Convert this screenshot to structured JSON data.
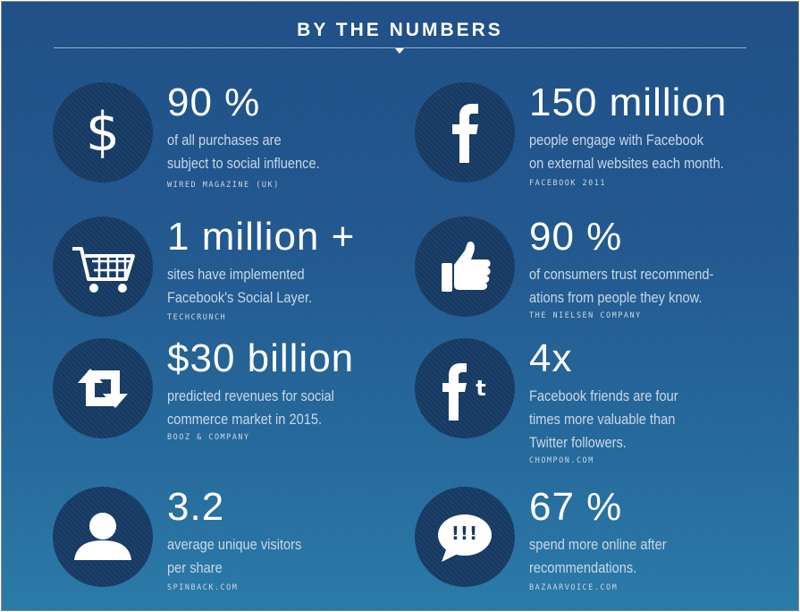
{
  "header": {
    "title": "BY THE NUMBERS"
  },
  "stats": [
    {
      "icon": "dollar-icon",
      "figure": "90 %",
      "line1": "of all purchases are",
      "line2": "subject to social influence.",
      "source": "WIRED MAGAZINE (UK)"
    },
    {
      "icon": "facebook-icon",
      "figure": "150 million",
      "line1": "people engage with Facebook",
      "line2": "on external websites each month.",
      "source": "FACEBOOK 2011"
    },
    {
      "icon": "shopping-cart-icon",
      "figure": "1 million +",
      "line1": "sites have implemented",
      "line2": "Facebook's Social Layer.",
      "source": "TECHCRUNCH"
    },
    {
      "icon": "thumbs-up-icon",
      "figure": "90 %",
      "line1": "of consumers trust recommend-",
      "line2": "ations from people they know.",
      "source": "THE NIELSEN COMPANY"
    },
    {
      "icon": "retweet-icon",
      "figure": "$30 billion",
      "line1": "predicted revenues for social",
      "line2": "commerce market in 2015.",
      "source": "BOOZ & COMPANY"
    },
    {
      "icon": "facebook-twitter-icon",
      "figure": "4x",
      "line1": "Facebook friends are four",
      "line2": "times more valuable than",
      "line3": "Twitter followers.",
      "source": "CHOMPON.COM"
    },
    {
      "icon": "user-icon",
      "figure": "3.2",
      "line1": "average unique visitors",
      "line2": "per share",
      "source": "SPINBACK.COM"
    },
    {
      "icon": "speech-bubble-icon",
      "figure": "67 %",
      "bubble": "!!!",
      "line1": "spend more online after",
      "line2": "recommendations.",
      "source": "BAZAARVOICE.COM"
    }
  ]
}
